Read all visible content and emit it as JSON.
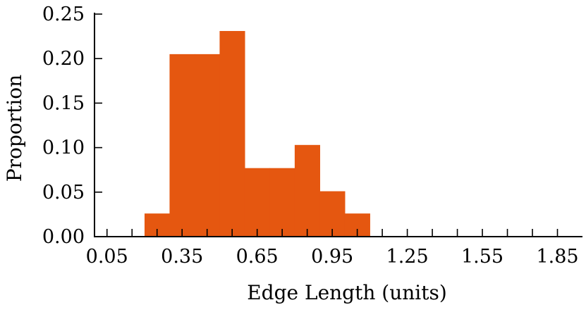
{
  "chart_data": {
    "type": "bar",
    "xlabel": "Edge Length (units)",
    "ylabel": "Proportion",
    "xlim": [
      0.0,
      1.95
    ],
    "ylim": [
      0.0,
      0.25
    ],
    "bin_width": 0.1,
    "bins": [
      {
        "start": 0.2,
        "end": 0.3,
        "value": 0.026
      },
      {
        "start": 0.3,
        "end": 0.4,
        "value": 0.205
      },
      {
        "start": 0.4,
        "end": 0.5,
        "value": 0.205
      },
      {
        "start": 0.5,
        "end": 0.6,
        "value": 0.231
      },
      {
        "start": 0.6,
        "end": 0.7,
        "value": 0.077
      },
      {
        "start": 0.7,
        "end": 0.8,
        "value": 0.077
      },
      {
        "start": 0.8,
        "end": 0.9,
        "value": 0.103
      },
      {
        "start": 0.9,
        "end": 1.0,
        "value": 0.051
      },
      {
        "start": 1.0,
        "end": 1.1,
        "value": 0.026
      }
    ],
    "x_ticks_labeled": [
      "0.05",
      "0.35",
      "0.65",
      "0.95",
      "1.25",
      "1.55",
      "1.85"
    ],
    "x_tick_values_labeled": [
      0.05,
      0.35,
      0.65,
      0.95,
      1.25,
      1.55,
      1.85
    ],
    "x_tick_values_minor": [
      0.05,
      0.15,
      0.25,
      0.35,
      0.45,
      0.55,
      0.65,
      0.75,
      0.85,
      0.95,
      1.05,
      1.15,
      1.25,
      1.35,
      1.45,
      1.55,
      1.65,
      1.75,
      1.85
    ],
    "y_ticks": [
      "0.00",
      "0.05",
      "0.10",
      "0.15",
      "0.20",
      "0.25"
    ],
    "y_tick_values": [
      0.0,
      0.05,
      0.1,
      0.15,
      0.2,
      0.25
    ],
    "bar_color": "#e55710",
    "grid": false,
    "legend": "none"
  }
}
